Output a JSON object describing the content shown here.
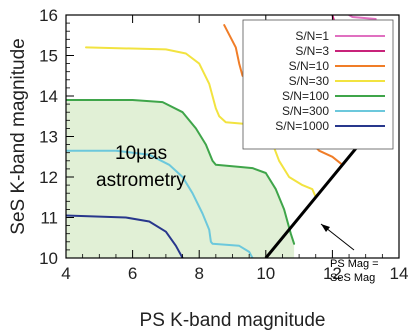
{
  "chart_data": {
    "type": "line",
    "xlabel": "PS K-band magnitude",
    "ylabel": "SeS K-band magnitude",
    "xlim": [
      4,
      14
    ],
    "ylim": [
      10,
      16
    ],
    "x_ticks": [
      "4",
      "6",
      "8",
      "10",
      "12",
      "14"
    ],
    "y_ticks": [
      "10",
      "11",
      "12",
      "13",
      "14",
      "15",
      "16"
    ],
    "grid": false,
    "legend_position": "top-right",
    "annotations": {
      "region_label": "10μas astrometry",
      "diagonal_label": "PS Mag = SeS Mag"
    },
    "shaded_region": {
      "color": "#e1f0d6",
      "edge_series": "S/N=100"
    },
    "diagonal": {
      "color": "#000000",
      "points": [
        [
          10,
          10
        ],
        [
          13.4,
          13.4
        ]
      ]
    },
    "series": [
      {
        "name": "S/N=1",
        "color": "#e070c0",
        "points": [
          [
            12.5,
            16
          ],
          [
            12.6,
            15.95
          ],
          [
            13.3,
            15.9
          ]
        ]
      },
      {
        "name": "S/N=3",
        "color": "#c8237a",
        "points": [
          [
            12.0,
            16
          ],
          [
            12.25,
            15.3
          ],
          [
            12.4,
            14.9
          ],
          [
            12.5,
            14.8
          ],
          [
            12.6,
            14.8
          ],
          [
            13.0,
            14.1
          ],
          [
            13.1,
            14.0
          ]
        ]
      },
      {
        "name": "S/N=10",
        "color": "#f07d28",
        "points": [
          [
            8.75,
            15.75
          ],
          [
            9.1,
            15.2
          ],
          [
            9.2,
            14.8
          ],
          [
            9.3,
            14.5
          ],
          [
            9.45,
            14.42
          ],
          [
            10.0,
            14.4
          ],
          [
            10.6,
            14.3
          ],
          [
            10.8,
            13.9
          ],
          [
            11.0,
            13.2
          ],
          [
            11.3,
            12.9
          ],
          [
            11.6,
            12.65
          ],
          [
            12.0,
            12.5
          ],
          [
            12.3,
            12.3
          ]
        ]
      },
      {
        "name": "S/N=30",
        "color": "#f2e340",
        "points": [
          [
            4.6,
            15.2
          ],
          [
            7.0,
            15.15
          ],
          [
            7.6,
            15.05
          ],
          [
            8.0,
            14.8
          ],
          [
            8.3,
            14.3
          ],
          [
            8.5,
            13.7
          ],
          [
            8.6,
            13.5
          ],
          [
            8.8,
            13.35
          ],
          [
            9.5,
            13.3
          ],
          [
            9.9,
            13.3
          ],
          [
            10.1,
            13.05
          ],
          [
            10.4,
            12.4
          ],
          [
            10.7,
            12.0
          ],
          [
            11.1,
            11.8
          ],
          [
            11.4,
            11.7
          ],
          [
            11.5,
            11.5
          ]
        ]
      },
      {
        "name": "S/N=100",
        "color": "#3fa54a",
        "points": [
          [
            4.0,
            13.9
          ],
          [
            6.0,
            13.9
          ],
          [
            6.9,
            13.85
          ],
          [
            7.5,
            13.6
          ],
          [
            7.9,
            13.2
          ],
          [
            8.2,
            12.8
          ],
          [
            8.4,
            12.4
          ],
          [
            8.5,
            12.3
          ],
          [
            9.2,
            12.25
          ],
          [
            9.6,
            12.22
          ],
          [
            10.0,
            12.1
          ],
          [
            10.3,
            11.7
          ],
          [
            10.55,
            11.2
          ],
          [
            10.75,
            10.6
          ],
          [
            10.85,
            10.35
          ]
        ]
      },
      {
        "name": "S/N=300",
        "color": "#6cc8dc",
        "points": [
          [
            4.0,
            12.65
          ],
          [
            5.5,
            12.65
          ],
          [
            6.5,
            12.55
          ],
          [
            7.1,
            12.3
          ],
          [
            7.5,
            12.0
          ],
          [
            7.8,
            11.6
          ],
          [
            8.1,
            11.1
          ],
          [
            8.3,
            10.7
          ],
          [
            8.35,
            10.4
          ],
          [
            8.4,
            10.35
          ],
          [
            9.2,
            10.3
          ],
          [
            9.5,
            10.15
          ],
          [
            9.6,
            10.0
          ]
        ]
      },
      {
        "name": "S/N=1000",
        "color": "#28378c",
        "points": [
          [
            4.0,
            11.05
          ],
          [
            5.8,
            11.0
          ],
          [
            6.5,
            10.9
          ],
          [
            7.0,
            10.65
          ],
          [
            7.3,
            10.3
          ],
          [
            7.5,
            10.0
          ]
        ]
      }
    ]
  }
}
